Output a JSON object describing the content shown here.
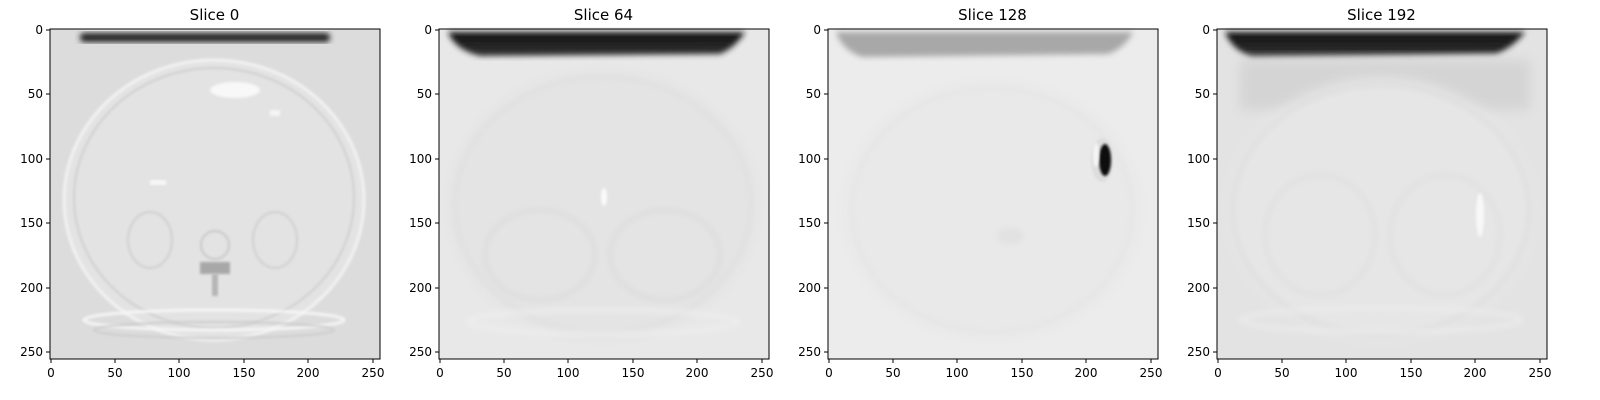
{
  "figure": {
    "colormap": "gray",
    "image_size": 256,
    "panels": [
      {
        "title": "Slice 0"
      },
      {
        "title": "Slice 64"
      },
      {
        "title": "Slice 128"
      },
      {
        "title": "Slice 192"
      }
    ],
    "x_ticks": [
      0,
      50,
      100,
      150,
      200,
      250
    ],
    "y_ticks": [
      0,
      50,
      100,
      150,
      200,
      250
    ]
  }
}
